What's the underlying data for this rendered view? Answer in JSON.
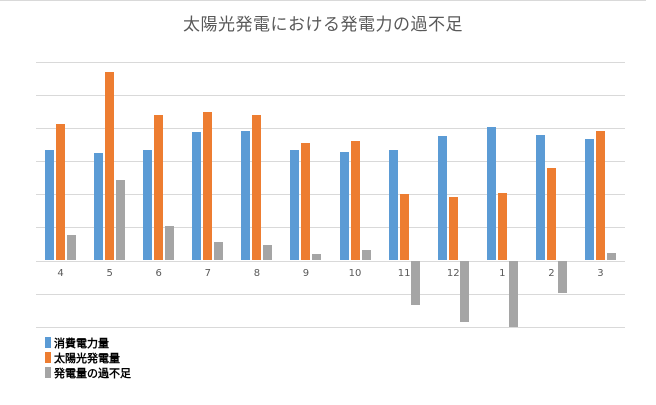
{
  "title": "太陽光発電における発電力の過不足",
  "legend": [
    {
      "label": "消費電力量",
      "color": "#5b9bd5"
    },
    {
      "label": "太陽光発電量",
      "color": "#ed7d31"
    },
    {
      "label": "発電量の過不足",
      "color": "#a5a5a5"
    }
  ],
  "chart_data": {
    "type": "bar",
    "title": "太陽光発電における発電力の過不足",
    "xlabel": "",
    "ylabel": "",
    "categories": [
      "4",
      "5",
      "6",
      "7",
      "8",
      "9",
      "10",
      "11",
      "12",
      "1",
      "2",
      "3"
    ],
    "series": [
      {
        "name": "消費電力量",
        "color": "#5b9bd5",
        "values": [
          334,
          325,
          334,
          388,
          391,
          334,
          328,
          334,
          376,
          403,
          379,
          367
        ]
      },
      {
        "name": "太陽光発電量",
        "color": "#ed7d31",
        "values": [
          412,
          569,
          440,
          449,
          440,
          355,
          361,
          201,
          192,
          204,
          279,
          391
        ]
      },
      {
        "name": "発電量の過不足",
        "color": "#a5a5a5",
        "values": [
          77,
          243,
          104,
          56,
          47,
          20,
          32,
          -134,
          -186,
          -201,
          -98,
          23
        ]
      }
    ],
    "ylim": [
      -200,
      600
    ],
    "y_tick_step": 100,
    "y_tick_labels_visible": false,
    "grid": true,
    "legend_position": "bottom-left",
    "note": "Y axis has no labels; values are relative units where one gridline interval = 100"
  }
}
